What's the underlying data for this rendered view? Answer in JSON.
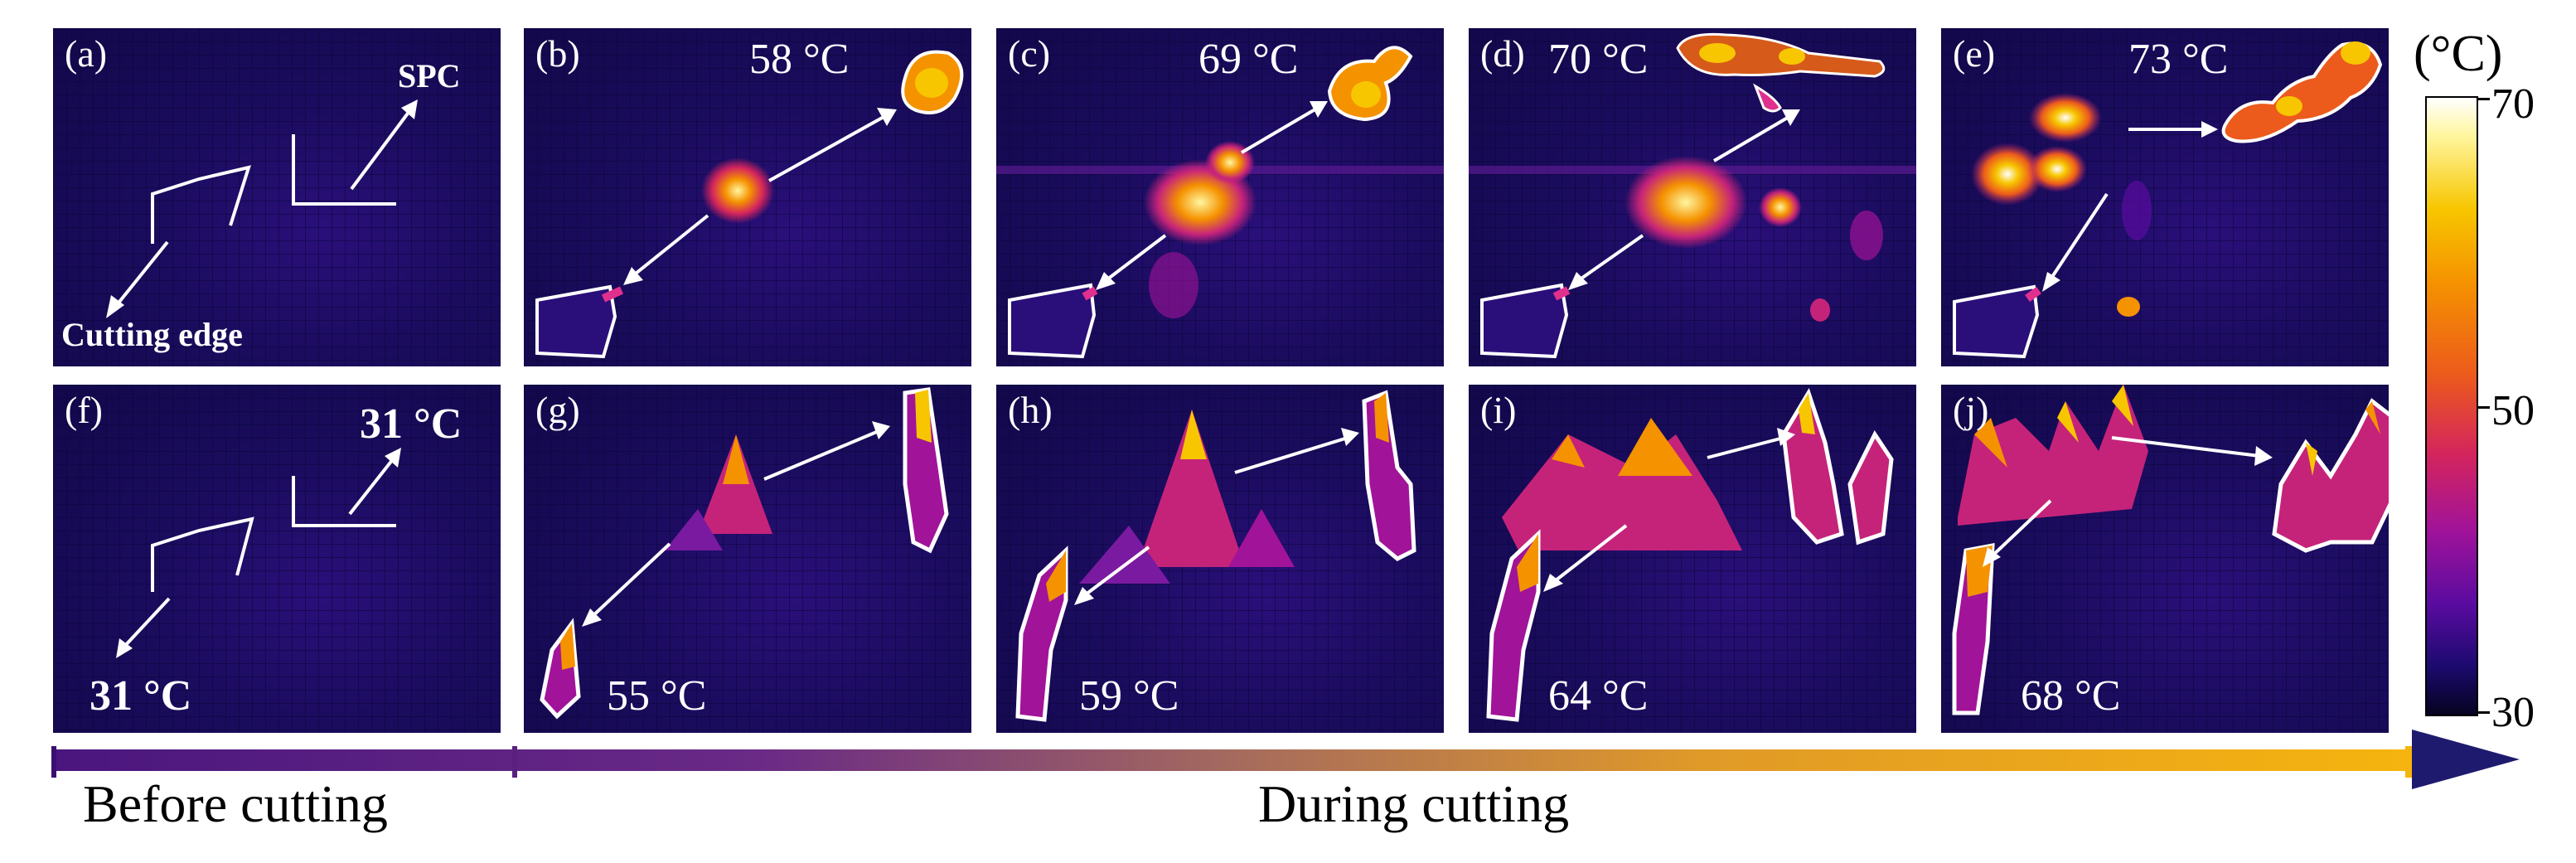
{
  "colorbar": {
    "unit": "(°C)",
    "max": "70",
    "mid": "50",
    "min": "30"
  },
  "phases": {
    "before": "Before cutting",
    "during": "During cutting"
  },
  "panels_top": [
    {
      "label": "(a)",
      "temp": ""
    },
    {
      "label": "(b)",
      "temp": "58 °C"
    },
    {
      "label": "(c)",
      "temp": "69 °C"
    },
    {
      "label": "(d)",
      "temp": "70 °C"
    },
    {
      "label": "(e)",
      "temp": "73 °C"
    }
  ],
  "panels_bottom": [
    {
      "label": "(f)",
      "temp": "31 °C",
      "temp2": "31 °C"
    },
    {
      "label": "(g)",
      "temp": "55 °C"
    },
    {
      "label": "(h)",
      "temp": "59 °C"
    },
    {
      "label": "(i)",
      "temp": "64 °C"
    },
    {
      "label": "(j)",
      "temp": "68 °C"
    }
  ],
  "annotations": {
    "spc": "SPC",
    "cutting_edge": "Cutting edge"
  },
  "colors": {
    "background_dark": "#12084a",
    "hot": "#f7c600",
    "warm": "#d3245e"
  }
}
